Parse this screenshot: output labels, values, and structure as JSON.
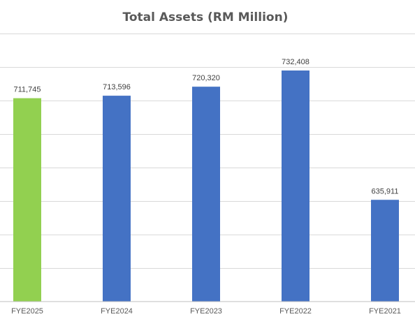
{
  "chart_data": {
    "type": "bar",
    "title": "Total Assets (RM Million)",
    "xlabel": "",
    "ylabel": "",
    "categories": [
      "FYE2025",
      "FYE2024",
      "FYE2023",
      "FYE2022",
      "FYE2021"
    ],
    "values": [
      711745,
      713596,
      720320,
      732408,
      635911
    ],
    "value_labels": [
      "711,745",
      "713,596",
      "720,320",
      "732,408",
      "635,911"
    ],
    "ylim": [
      560000,
      760000
    ],
    "grid": true,
    "legend": "none",
    "colors": {
      "highlight": "#92d050",
      "default": "#4472c4",
      "highlight_index": 0
    }
  }
}
